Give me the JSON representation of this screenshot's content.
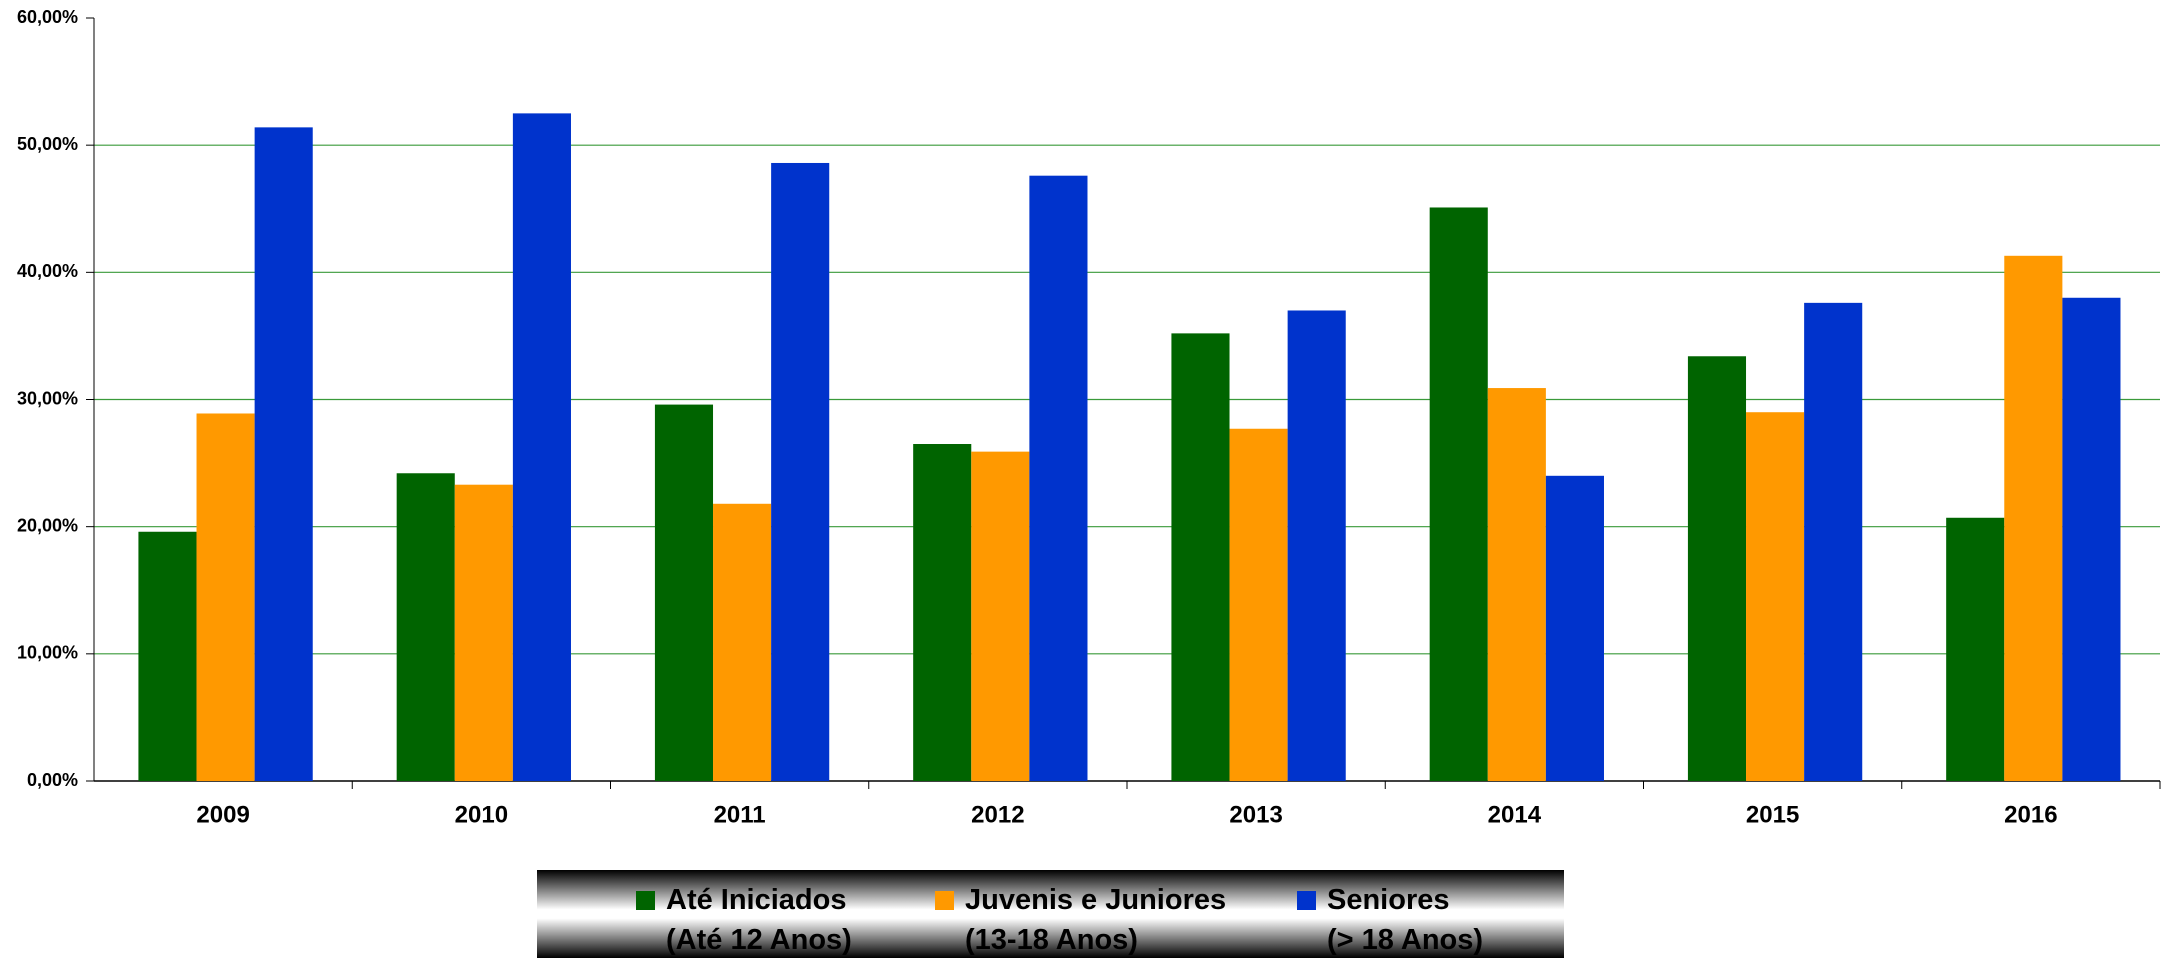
{
  "chart_data": {
    "type": "bar",
    "categories": [
      "2009",
      "2010",
      "2011",
      "2012",
      "2013",
      "2014",
      "2015",
      "2016"
    ],
    "series": [
      {
        "name": "Até Iniciados\n(Até 12 Anos)",
        "color": "#006400",
        "values": [
          19.6,
          24.2,
          29.6,
          26.5,
          35.2,
          45.1,
          33.4,
          20.7
        ]
      },
      {
        "name": "Juvenis e Juniores\n(13-18 Anos)",
        "color": "#ff9900",
        "values": [
          28.9,
          23.3,
          21.8,
          25.9,
          27.7,
          30.9,
          29.0,
          41.3
        ]
      },
      {
        "name": "Seniores\n(> 18 Anos)",
        "color": "#0033cc",
        "values": [
          51.4,
          52.5,
          48.6,
          47.6,
          37.0,
          24.0,
          37.6,
          38.0
        ]
      }
    ],
    "ylim": [
      0,
      60
    ],
    "yticks": [
      {
        "value": 0,
        "label": "0,00%"
      },
      {
        "value": 10,
        "label": "10,00%"
      },
      {
        "value": 20,
        "label": "20,00%"
      },
      {
        "value": 30,
        "label": "30,00%"
      },
      {
        "value": 40,
        "label": "40,00%"
      },
      {
        "value": 50,
        "label": "50,00%"
      },
      {
        "value": 60,
        "label": "60,00%"
      }
    ],
    "grid": true,
    "legend": "bottom"
  }
}
